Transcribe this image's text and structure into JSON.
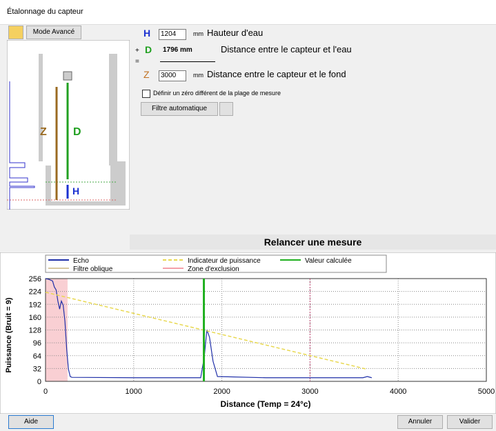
{
  "window": {
    "title": "Étalonnage du capteur"
  },
  "toolbar": {
    "mode_button": "Mode Avancé"
  },
  "form": {
    "h": {
      "letter": "H",
      "value": "1204",
      "unit": "mm",
      "label": "Hauteur d'eau"
    },
    "d": {
      "sign": "+",
      "letter": "D",
      "value": "1796 mm",
      "label": "Distance entre le capteur et l'eau"
    },
    "equals": "=",
    "z": {
      "letter": "Z",
      "value": "3000",
      "unit": "mm",
      "label": "Distance entre le capteur et le fond"
    },
    "checkbox": "Définir un zéro différent de la plage de mesure",
    "filter_button": "Filtre automatique"
  },
  "diagram": {
    "z": "Z",
    "d": "D",
    "h": "H"
  },
  "remeasure_button": "Relancer une mesure",
  "chart_data": {
    "type": "line",
    "x_label": "Distance (Temp = 24°c)",
    "y_label": "Puissance (Bruit = 9)",
    "xlim": [
      0,
      5000
    ],
    "xticks": [
      0,
      1000,
      2000,
      3000,
      4000,
      5000
    ],
    "ylim": [
      0,
      256
    ],
    "yticks": [
      0,
      32,
      64,
      96,
      128,
      160,
      192,
      224,
      256
    ],
    "grid": true,
    "series": [
      {
        "name": "Echo",
        "color": "#1f2fa8",
        "style": "solid",
        "x": [
          0,
          40,
          80,
          100,
          120,
          140,
          160,
          180,
          200,
          220,
          240,
          260,
          280,
          300,
          1000,
          1760,
          1800,
          1830,
          1860,
          1900,
          1950,
          2500,
          3600,
          3650,
          3700
        ],
        "values": [
          256,
          254,
          250,
          235,
          228,
          200,
          180,
          200,
          190,
          150,
          80,
          30,
          12,
          10,
          9,
          9,
          60,
          128,
          110,
          50,
          12,
          9,
          9,
          12,
          9
        ]
      },
      {
        "name": "Filtre oblique",
        "color": "#d8c8a0",
        "style": "solid",
        "x": [],
        "values": []
      },
      {
        "name": "Indicateur de puissance",
        "color": "#e8d850",
        "style": "dashed",
        "x": [
          0,
          3650
        ],
        "values": [
          222,
          30
        ]
      }
    ],
    "exclusion_zone": {
      "name": "Zone d'exclusion",
      "color": "#f4a0a8",
      "range": [
        0,
        250
      ]
    },
    "computed_value": {
      "name": "Valeur calculée",
      "color": "#20b020",
      "x": 1796
    },
    "bottom_marker": {
      "x": 3000,
      "color": "#c04070"
    }
  },
  "footer": {
    "help": "Aide",
    "cancel": "Annuler",
    "validate": "Valider"
  }
}
